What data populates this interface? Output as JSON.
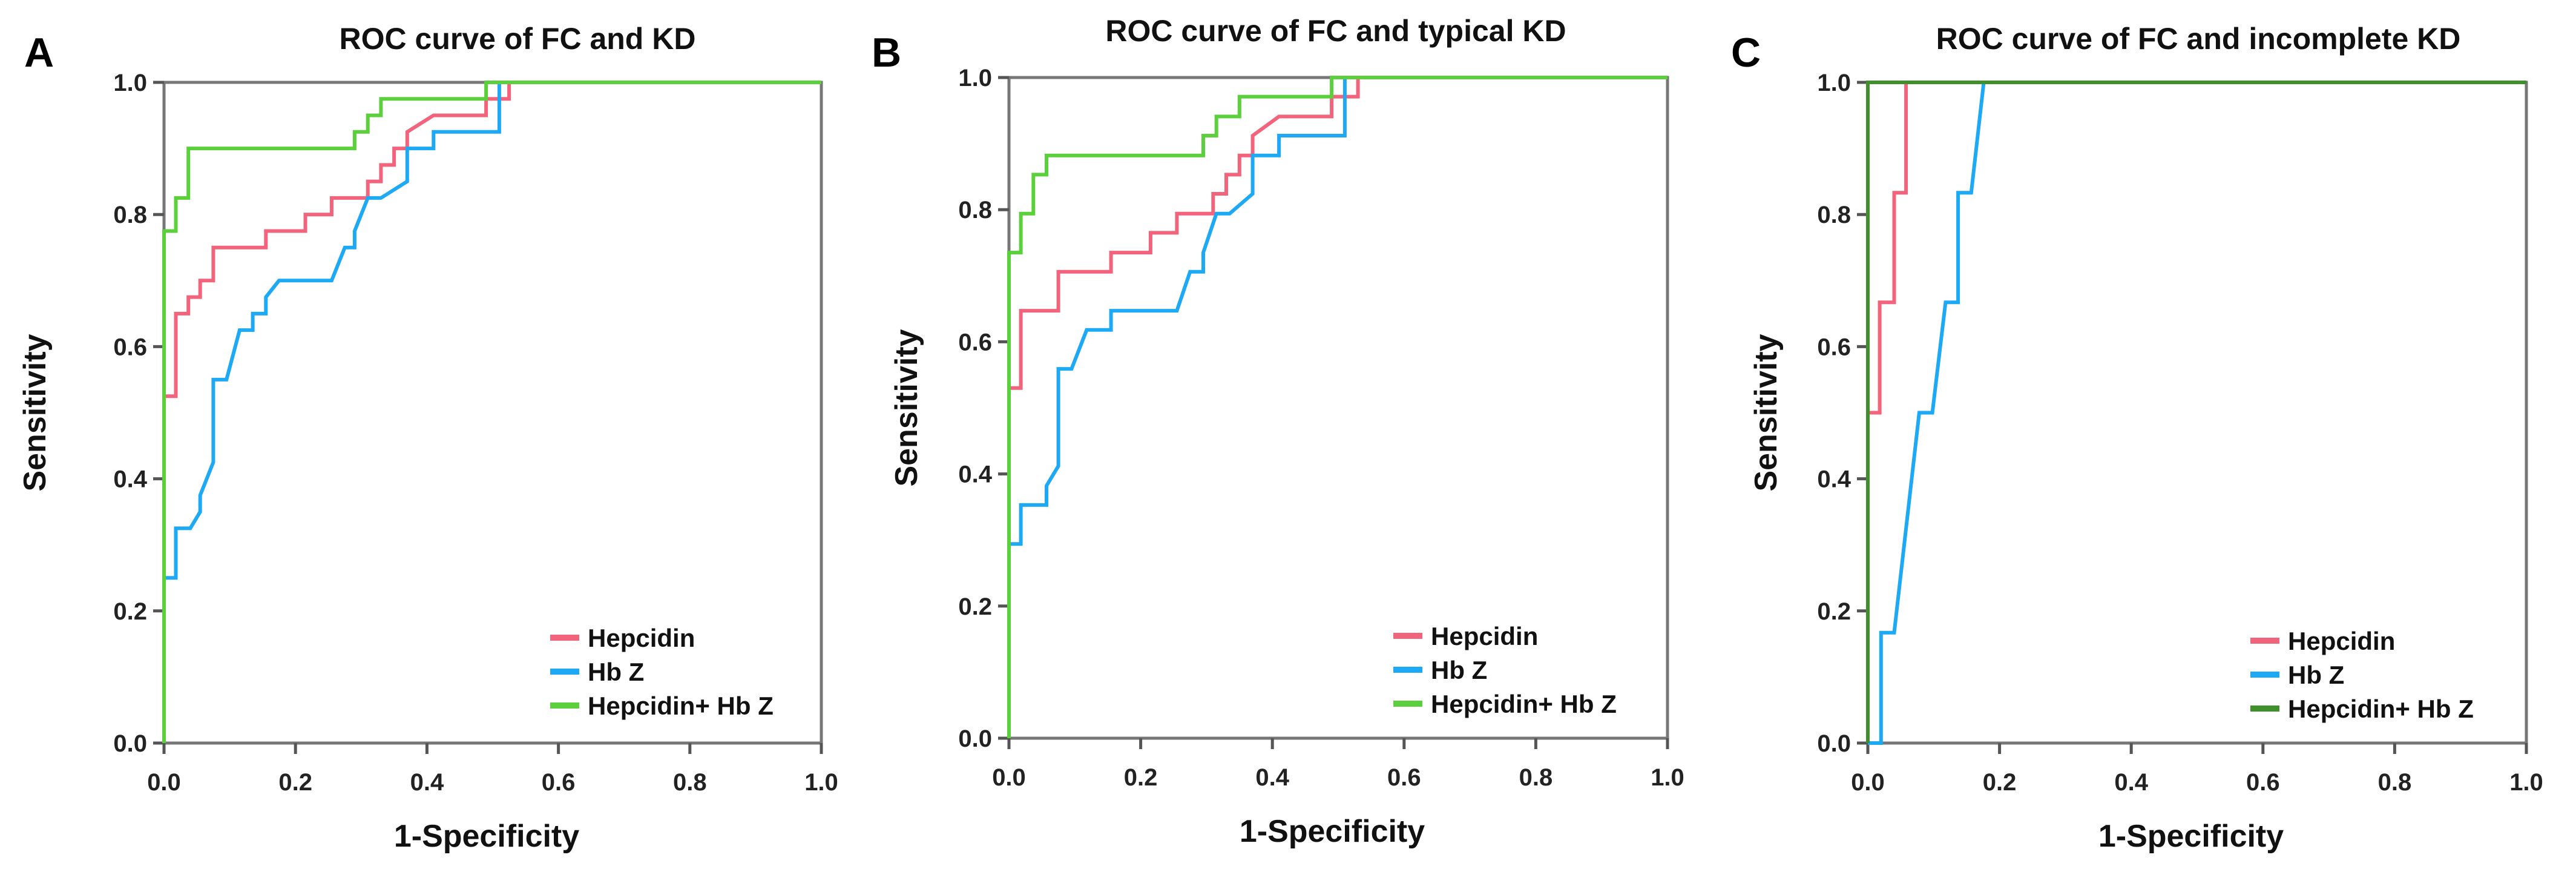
{
  "chart_data": [
    {
      "type": "line",
      "panel_letter": "A",
      "title": "ROC curve of FC and KD",
      "xlabel": "1-Specificity",
      "ylabel": "Sensitivity",
      "xlim": [
        0,
        1
      ],
      "ylim": [
        0,
        1
      ],
      "xticks": [
        "0.0",
        "0.2",
        "0.4",
        "0.6",
        "0.8",
        "1.0"
      ],
      "yticks": [
        "0.0",
        "0.2",
        "0.4",
        "0.6",
        "0.8",
        "1.0"
      ],
      "grid": false,
      "legend_position": "bottom-right",
      "series": [
        {
          "name": "Hepcidin",
          "color": "#f2637c",
          "points": [
            [
              0,
              0
            ],
            [
              0,
              0.525
            ],
            [
              0.018,
              0.525
            ],
            [
              0.018,
              0.65
            ],
            [
              0.037,
              0.65
            ],
            [
              0.037,
              0.675
            ],
            [
              0.055,
              0.675
            ],
            [
              0.055,
              0.7
            ],
            [
              0.075,
              0.7
            ],
            [
              0.075,
              0.75
            ],
            [
              0.155,
              0.75
            ],
            [
              0.155,
              0.775
            ],
            [
              0.215,
              0.775
            ],
            [
              0.215,
              0.8
            ],
            [
              0.255,
              0.8
            ],
            [
              0.255,
              0.825
            ],
            [
              0.31,
              0.825
            ],
            [
              0.31,
              0.85
            ],
            [
              0.33,
              0.85
            ],
            [
              0.33,
              0.875
            ],
            [
              0.35,
              0.875
            ],
            [
              0.35,
              0.9
            ],
            [
              0.37,
              0.9
            ],
            [
              0.37,
              0.925
            ],
            [
              0.41,
              0.95
            ],
            [
              0.49,
              0.95
            ],
            [
              0.49,
              0.975
            ],
            [
              0.525,
              0.975
            ],
            [
              0.525,
              1
            ],
            [
              1,
              1
            ]
          ]
        },
        {
          "name": "Hb Z",
          "color": "#1ea9f5",
          "points": [
            [
              0,
              0
            ],
            [
              0,
              0.25
            ],
            [
              0.018,
              0.25
            ],
            [
              0.018,
              0.325
            ],
            [
              0.04,
              0.325
            ],
            [
              0.055,
              0.35
            ],
            [
              0.055,
              0.375
            ],
            [
              0.075,
              0.425
            ],
            [
              0.075,
              0.55
            ],
            [
              0.095,
              0.55
            ],
            [
              0.115,
              0.625
            ],
            [
              0.135,
              0.625
            ],
            [
              0.135,
              0.65
            ],
            [
              0.155,
              0.65
            ],
            [
              0.155,
              0.675
            ],
            [
              0.175,
              0.7
            ],
            [
              0.255,
              0.7
            ],
            [
              0.275,
              0.75
            ],
            [
              0.29,
              0.75
            ],
            [
              0.29,
              0.775
            ],
            [
              0.31,
              0.825
            ],
            [
              0.33,
              0.825
            ],
            [
              0.37,
              0.85
            ],
            [
              0.37,
              0.9
            ],
            [
              0.41,
              0.9
            ],
            [
              0.41,
              0.925
            ],
            [
              0.51,
              0.925
            ],
            [
              0.51,
              1
            ],
            [
              1,
              1
            ]
          ]
        },
        {
          "name": "Hepcidin+ Hb Z",
          "color": "#5ccf3c",
          "points": [
            [
              0,
              0
            ],
            [
              0,
              0.775
            ],
            [
              0.018,
              0.775
            ],
            [
              0.018,
              0.825
            ],
            [
              0.037,
              0.825
            ],
            [
              0.037,
              0.9
            ],
            [
              0.29,
              0.9
            ],
            [
              0.29,
              0.925
            ],
            [
              0.31,
              0.925
            ],
            [
              0.31,
              0.95
            ],
            [
              0.33,
              0.95
            ],
            [
              0.33,
              0.975
            ],
            [
              0.49,
              0.975
            ],
            [
              0.49,
              1
            ],
            [
              1,
              1
            ]
          ]
        }
      ]
    },
    {
      "type": "line",
      "panel_letter": "B",
      "title": "ROC curve of FC and typical KD",
      "xlabel": "1-Specificity",
      "ylabel": "Sensitivity",
      "xlim": [
        0,
        1
      ],
      "ylim": [
        0,
        1
      ],
      "xticks": [
        "0.0",
        "0.2",
        "0.4",
        "0.6",
        "0.8",
        "1.0"
      ],
      "yticks": [
        "0.0",
        "0.2",
        "0.4",
        "0.6",
        "0.8",
        "1.0"
      ],
      "grid": false,
      "legend_position": "bottom-right",
      "series": [
        {
          "name": "Hepcidin",
          "color": "#f2637c",
          "points": [
            [
              0,
              0
            ],
            [
              0,
              0.53
            ],
            [
              0.018,
              0.53
            ],
            [
              0.018,
              0.647
            ],
            [
              0.075,
              0.647
            ],
            [
              0.075,
              0.706
            ],
            [
              0.155,
              0.706
            ],
            [
              0.155,
              0.735
            ],
            [
              0.215,
              0.735
            ],
            [
              0.215,
              0.765
            ],
            [
              0.255,
              0.765
            ],
            [
              0.255,
              0.794
            ],
            [
              0.31,
              0.794
            ],
            [
              0.31,
              0.824
            ],
            [
              0.33,
              0.824
            ],
            [
              0.33,
              0.853
            ],
            [
              0.35,
              0.853
            ],
            [
              0.35,
              0.882
            ],
            [
              0.37,
              0.882
            ],
            [
              0.37,
              0.912
            ],
            [
              0.41,
              0.941
            ],
            [
              0.49,
              0.941
            ],
            [
              0.49,
              0.971
            ],
            [
              0.53,
              0.971
            ],
            [
              0.53,
              1
            ],
            [
              1,
              1
            ]
          ]
        },
        {
          "name": "Hb Z",
          "color": "#1ea9f5",
          "points": [
            [
              0,
              0
            ],
            [
              0,
              0.294
            ],
            [
              0.018,
              0.294
            ],
            [
              0.018,
              0.353
            ],
            [
              0.057,
              0.353
            ],
            [
              0.057,
              0.382
            ],
            [
              0.075,
              0.412
            ],
            [
              0.075,
              0.559
            ],
            [
              0.095,
              0.559
            ],
            [
              0.118,
              0.618
            ],
            [
              0.155,
              0.618
            ],
            [
              0.155,
              0.647
            ],
            [
              0.255,
              0.647
            ],
            [
              0.275,
              0.706
            ],
            [
              0.295,
              0.706
            ],
            [
              0.295,
              0.735
            ],
            [
              0.315,
              0.794
            ],
            [
              0.335,
              0.794
            ],
            [
              0.37,
              0.824
            ],
            [
              0.37,
              0.882
            ],
            [
              0.41,
              0.882
            ],
            [
              0.41,
              0.912
            ],
            [
              0.51,
              0.912
            ],
            [
              0.51,
              1
            ],
            [
              1,
              1
            ]
          ]
        },
        {
          "name": "Hepcidin+ Hb Z",
          "color": "#5ccf3c",
          "points": [
            [
              0,
              0
            ],
            [
              0,
              0.735
            ],
            [
              0.018,
              0.735
            ],
            [
              0.018,
              0.794
            ],
            [
              0.037,
              0.794
            ],
            [
              0.037,
              0.853
            ],
            [
              0.057,
              0.853
            ],
            [
              0.057,
              0.882
            ],
            [
              0.295,
              0.882
            ],
            [
              0.295,
              0.912
            ],
            [
              0.315,
              0.912
            ],
            [
              0.315,
              0.941
            ],
            [
              0.35,
              0.941
            ],
            [
              0.35,
              0.971
            ],
            [
              0.49,
              0.971
            ],
            [
              0.49,
              1
            ],
            [
              1,
              1
            ]
          ]
        }
      ]
    },
    {
      "type": "line",
      "panel_letter": "C",
      "title": "ROC curve of FC and incomplete KD",
      "xlabel": "1-Specificity",
      "ylabel": "Sensitivity",
      "xlim": [
        0,
        1
      ],
      "ylim": [
        0,
        1
      ],
      "xticks": [
        "0.0",
        "0.2",
        "0.4",
        "0.6",
        "0.8",
        "1.0"
      ],
      "yticks": [
        "0.0",
        "0.2",
        "0.4",
        "0.6",
        "0.8",
        "1.0"
      ],
      "grid": false,
      "legend_position": "bottom-right",
      "series": [
        {
          "name": "Hepcidin",
          "color": "#f2637c",
          "points": [
            [
              0,
              0
            ],
            [
              0,
              0.5
            ],
            [
              0.018,
              0.5
            ],
            [
              0.018,
              0.667
            ],
            [
              0.04,
              0.667
            ],
            [
              0.04,
              0.833
            ],
            [
              0.058,
              0.833
            ],
            [
              0.058,
              1
            ],
            [
              1,
              1
            ]
          ]
        },
        {
          "name": "Hb Z",
          "color": "#1ea9f5",
          "points": [
            [
              0,
              0
            ],
            [
              0.02,
              0
            ],
            [
              0.02,
              0.167
            ],
            [
              0.04,
              0.167
            ],
            [
              0.078,
              0.5
            ],
            [
              0.098,
              0.5
            ],
            [
              0.118,
              0.667
            ],
            [
              0.137,
              0.667
            ],
            [
              0.137,
              0.833
            ],
            [
              0.157,
              0.833
            ],
            [
              0.176,
              1
            ],
            [
              1,
              1
            ]
          ]
        },
        {
          "name": "Hepcidin+ Hb Z",
          "color": "#3f8f2a",
          "points": [
            [
              0,
              0
            ],
            [
              0,
              1
            ],
            [
              1,
              1
            ]
          ]
        }
      ]
    }
  ]
}
